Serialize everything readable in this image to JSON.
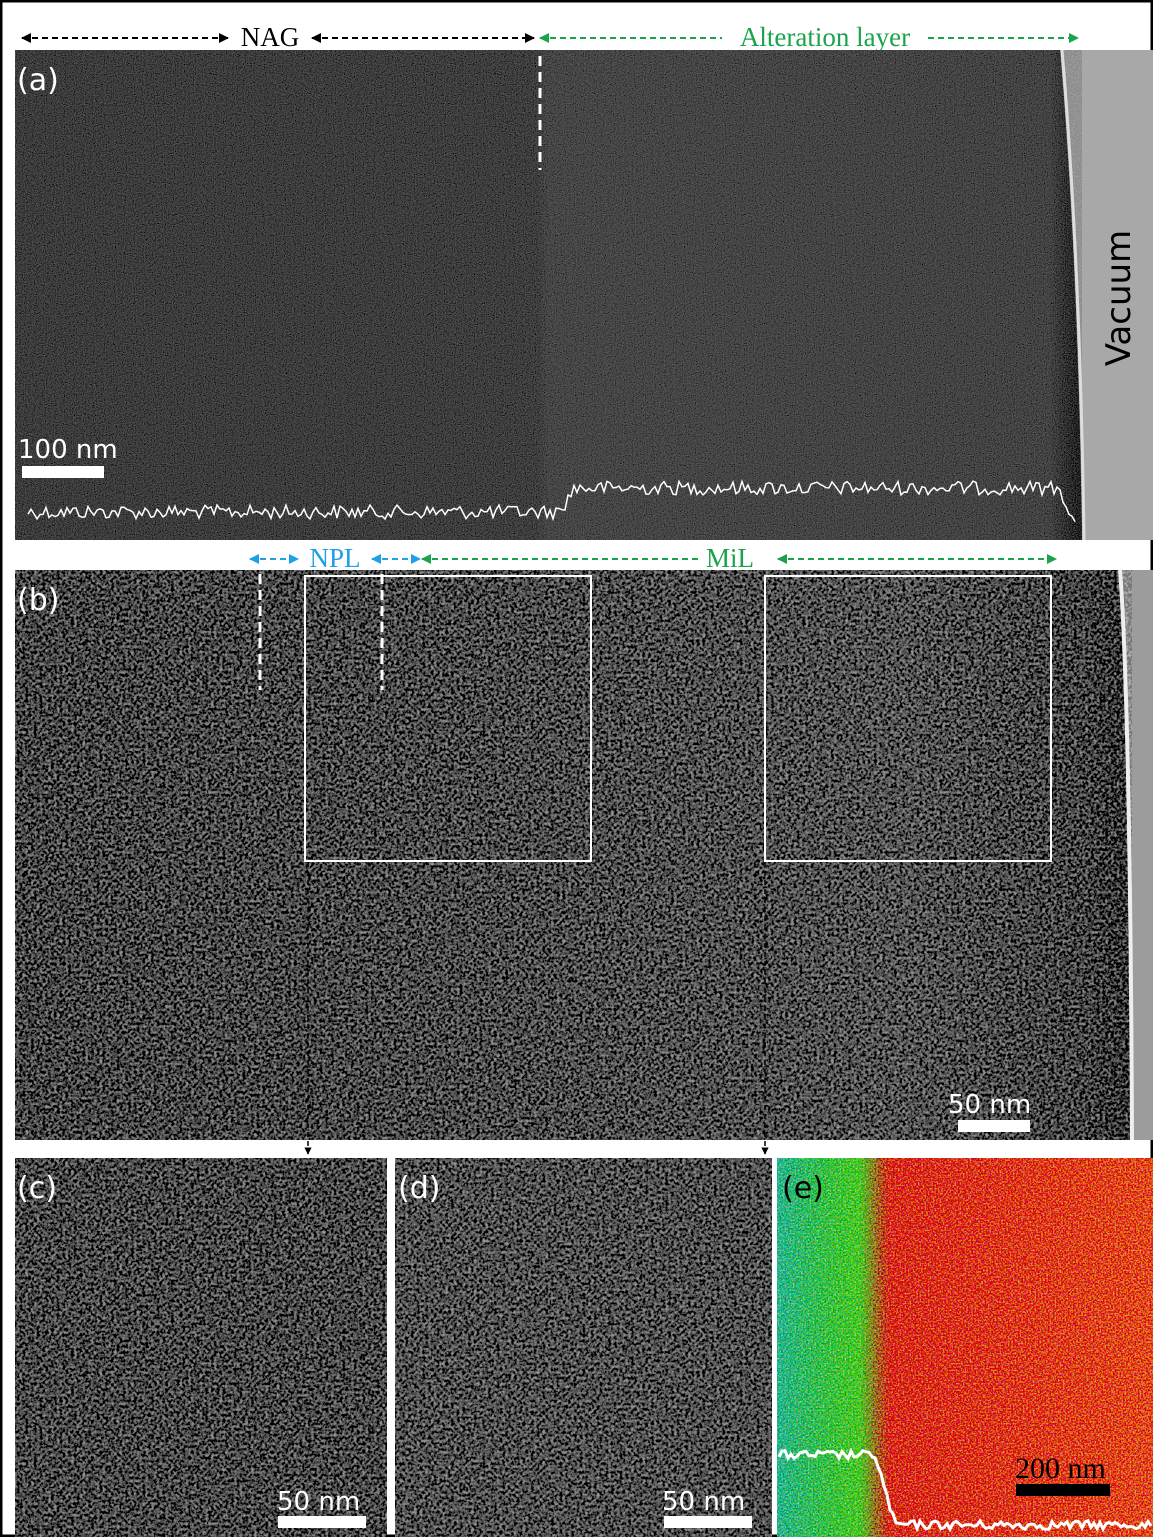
{
  "header": {
    "nag": "NAG",
    "alteration": "Alteration layer"
  },
  "panels": [
    {
      "label": "(a)",
      "vacuum": "Vacuum",
      "scale": "100 nm"
    },
    {
      "label": "(b)",
      "npl": "NPL",
      "mil": "MiL",
      "scale": "50 nm"
    },
    {
      "label": "(c)",
      "scale": "50 nm"
    },
    {
      "label": "(d)",
      "scale": "50 nm"
    },
    {
      "label": "(e)",
      "scale": "200 nm"
    }
  ]
}
